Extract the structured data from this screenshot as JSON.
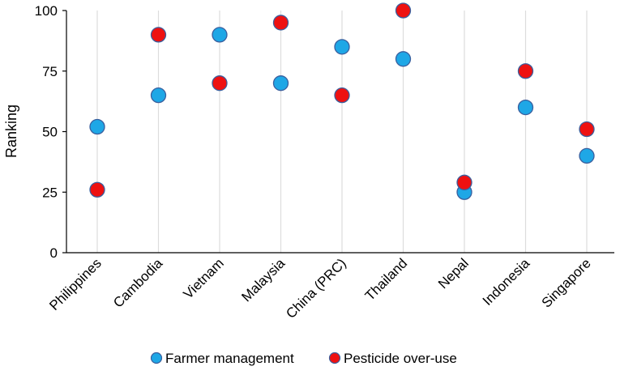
{
  "chart_data": {
    "type": "scatter",
    "title": "",
    "xlabel": "",
    "ylabel": "Ranking",
    "ylim": [
      0,
      100
    ],
    "yticks": [
      0,
      25,
      50,
      75,
      100
    ],
    "grid": "vertical",
    "legend_position": "bottom-center",
    "categories": [
      "Philippines",
      "Cambodia",
      "Vietnam",
      "Malaysia",
      "China (PRC)",
      "Thailand",
      "Nepal",
      "Indonesia",
      "Singapore"
    ],
    "series": [
      {
        "name": "Farmer management",
        "color": "#1ea7e6",
        "values": [
          52,
          65,
          90,
          70,
          85,
          80,
          25,
          60,
          40
        ]
      },
      {
        "name": "Pesticide over-use",
        "color": "#ee1111",
        "values": [
          26,
          90,
          70,
          95,
          65,
          100,
          29,
          75,
          51
        ]
      }
    ]
  }
}
